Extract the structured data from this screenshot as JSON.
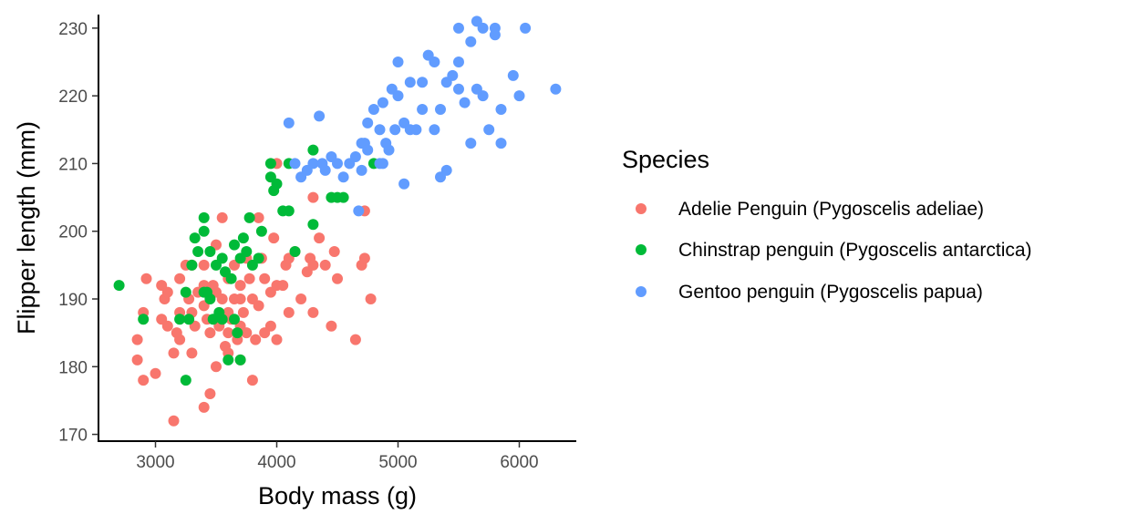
{
  "chart_data": {
    "type": "scatter",
    "title": "",
    "xlabel": "Body mass (g)",
    "ylabel": "Flipper length (mm)",
    "xlim": [
      2530,
      6470
    ],
    "ylim": [
      169,
      232
    ],
    "xticks": [
      3000,
      4000,
      5000,
      6000
    ],
    "yticks": [
      170,
      180,
      190,
      200,
      210,
      220,
      230
    ],
    "grid": false,
    "legend": {
      "title": "Species",
      "placement": "right"
    },
    "series": [
      {
        "name": "Adelie Penguin (Pygoscelis adeliae)",
        "color": "#F8766D",
        "points": [
          [
            2850,
            181
          ],
          [
            2850,
            184
          ],
          [
            2900,
            178
          ],
          [
            2900,
            188
          ],
          [
            2925,
            193
          ],
          [
            3000,
            179
          ],
          [
            3050,
            187
          ],
          [
            3050,
            192
          ],
          [
            3075,
            190
          ],
          [
            3100,
            186
          ],
          [
            3100,
            191
          ],
          [
            3150,
            172
          ],
          [
            3150,
            182
          ],
          [
            3175,
            185
          ],
          [
            3200,
            184
          ],
          [
            3200,
            193
          ],
          [
            3250,
            195
          ],
          [
            3275,
            190
          ],
          [
            3300,
            182
          ],
          [
            3300,
            188
          ],
          [
            3325,
            186
          ],
          [
            3350,
            191
          ],
          [
            3400,
            174
          ],
          [
            3400,
            189
          ],
          [
            3400,
            195
          ],
          [
            3425,
            187
          ],
          [
            3450,
            176
          ],
          [
            3450,
            185
          ],
          [
            3475,
            192
          ],
          [
            3500,
            180
          ],
          [
            3500,
            198
          ],
          [
            3525,
            186
          ],
          [
            3550,
            190
          ],
          [
            3550,
            202
          ],
          [
            3575,
            183
          ],
          [
            3600,
            185
          ],
          [
            3600,
            193
          ],
          [
            3625,
            187
          ],
          [
            3650,
            190
          ],
          [
            3650,
            195
          ],
          [
            3675,
            184
          ],
          [
            3700,
            181
          ],
          [
            3700,
            186
          ],
          [
            3700,
            192
          ],
          [
            3725,
            188
          ],
          [
            3750,
            185
          ],
          [
            3750,
            196
          ],
          [
            3775,
            193
          ],
          [
            3800,
            178
          ],
          [
            3800,
            190
          ],
          [
            3825,
            184
          ],
          [
            3850,
            189
          ],
          [
            3850,
            202
          ],
          [
            3875,
            196
          ],
          [
            3900,
            185
          ],
          [
            3900,
            193
          ],
          [
            3950,
            191
          ],
          [
            3975,
            199
          ],
          [
            4000,
            184
          ],
          [
            4000,
            192
          ],
          [
            4050,
            192
          ],
          [
            4075,
            195
          ],
          [
            4100,
            188
          ],
          [
            4150,
            197
          ],
          [
            4200,
            190
          ],
          [
            4250,
            194
          ],
          [
            4275,
            196
          ],
          [
            4300,
            188
          ],
          [
            4300,
            195
          ],
          [
            4300,
            205
          ],
          [
            4350,
            199
          ],
          [
            4400,
            195
          ],
          [
            4450,
            186
          ],
          [
            4475,
            197
          ],
          [
            4500,
            193
          ],
          [
            4650,
            184
          ],
          [
            4700,
            195
          ],
          [
            4725,
            196
          ],
          [
            4775,
            190
          ],
          [
            4000,
            210
          ],
          [
            4725,
            203
          ],
          [
            3300,
            195
          ],
          [
            3200,
            188
          ],
          [
            3400,
            192
          ],
          [
            3600,
            188
          ],
          [
            3700,
            190
          ],
          [
            4100,
            196
          ],
          [
            3600,
            182
          ],
          [
            3950,
            186
          ],
          [
            3500,
            191
          ]
        ]
      },
      {
        "name": "Chinstrap penguin (Pygoscelis antarctica)",
        "color": "#00BA38",
        "points": [
          [
            2700,
            192
          ],
          [
            2900,
            187
          ],
          [
            3250,
            178
          ],
          [
            3200,
            187
          ],
          [
            3250,
            191
          ],
          [
            3275,
            187
          ],
          [
            3300,
            195
          ],
          [
            3325,
            199
          ],
          [
            3350,
            197
          ],
          [
            3400,
            202
          ],
          [
            3400,
            200
          ],
          [
            3425,
            191
          ],
          [
            3450,
            190
          ],
          [
            3450,
            197
          ],
          [
            3475,
            187
          ],
          [
            3500,
            195
          ],
          [
            3525,
            188
          ],
          [
            3550,
            196
          ],
          [
            3575,
            194
          ],
          [
            3600,
            181
          ],
          [
            3625,
            193
          ],
          [
            3650,
            187
          ],
          [
            3650,
            198
          ],
          [
            3675,
            185
          ],
          [
            3700,
            181
          ],
          [
            3700,
            196
          ],
          [
            3725,
            199
          ],
          [
            3750,
            197
          ],
          [
            3775,
            202
          ],
          [
            3800,
            195
          ],
          [
            3850,
            196
          ],
          [
            3875,
            200
          ],
          [
            3950,
            208
          ],
          [
            3950,
            210
          ],
          [
            3975,
            206
          ],
          [
            4000,
            207
          ],
          [
            4050,
            203
          ],
          [
            4100,
            203
          ],
          [
            4150,
            197
          ],
          [
            4300,
            212
          ],
          [
            4300,
            201
          ],
          [
            4450,
            205
          ],
          [
            4500,
            205
          ],
          [
            4550,
            205
          ],
          [
            4800,
            210
          ],
          [
            4100,
            210
          ],
          [
            3550,
            187
          ],
          [
            3400,
            191
          ]
        ]
      },
      {
        "name": "Gentoo penguin (Pygoscelis papua)",
        "color": "#619CFF",
        "points": [
          [
            4100,
            216
          ],
          [
            4150,
            210
          ],
          [
            4200,
            208
          ],
          [
            4250,
            209
          ],
          [
            4300,
            210
          ],
          [
            4350,
            217
          ],
          [
            4400,
            209
          ],
          [
            4450,
            211
          ],
          [
            4500,
            210
          ],
          [
            4550,
            208
          ],
          [
            4600,
            210
          ],
          [
            4650,
            211
          ],
          [
            4700,
            209
          ],
          [
            4700,
            213
          ],
          [
            4725,
            213
          ],
          [
            4750,
            212
          ],
          [
            4750,
            216
          ],
          [
            4800,
            218
          ],
          [
            4850,
            210
          ],
          [
            4850,
            215
          ],
          [
            4875,
            219
          ],
          [
            4900,
            213
          ],
          [
            4925,
            212
          ],
          [
            4950,
            221
          ],
          [
            4975,
            215
          ],
          [
            5000,
            220
          ],
          [
            5000,
            225
          ],
          [
            5050,
            207
          ],
          [
            5050,
            216
          ],
          [
            5100,
            215
          ],
          [
            5100,
            222
          ],
          [
            5150,
            215
          ],
          [
            5200,
            218
          ],
          [
            5200,
            222
          ],
          [
            5250,
            226
          ],
          [
            5300,
            215
          ],
          [
            5300,
            225
          ],
          [
            5350,
            208
          ],
          [
            5350,
            218
          ],
          [
            5400,
            222
          ],
          [
            5450,
            223
          ],
          [
            5500,
            221
          ],
          [
            5500,
            225
          ],
          [
            5550,
            219
          ],
          [
            5600,
            213
          ],
          [
            5600,
            228
          ],
          [
            5650,
            221
          ],
          [
            5650,
            231
          ],
          [
            5700,
            220
          ],
          [
            5700,
            230
          ],
          [
            5750,
            215
          ],
          [
            5800,
            229
          ],
          [
            5850,
            213
          ],
          [
            5850,
            218
          ],
          [
            5950,
            223
          ],
          [
            6000,
            220
          ],
          [
            6050,
            230
          ],
          [
            6300,
            221
          ],
          [
            4875,
            210
          ],
          [
            5400,
            209
          ],
          [
            5500,
            230
          ],
          [
            5800,
            230
          ],
          [
            4675,
            203
          ],
          [
            4375,
            210
          ]
        ]
      }
    ]
  }
}
